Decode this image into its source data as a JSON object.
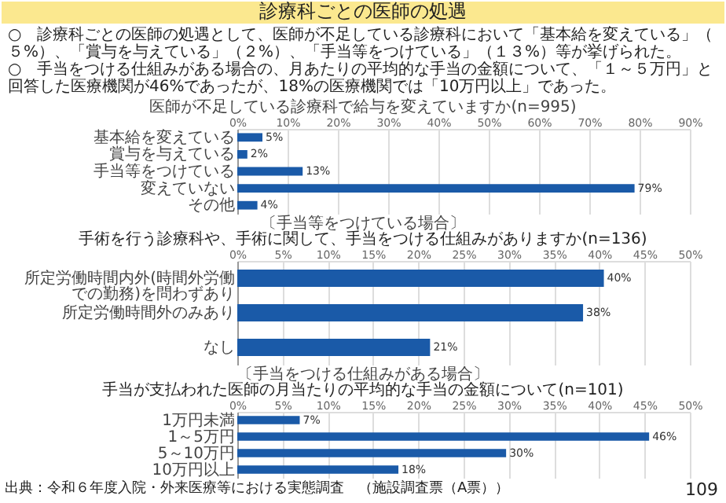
{
  "chart_data": [
    {
      "type": "bar",
      "orientation": "horizontal",
      "title": "医師が不足している診療科で給与を変えていますか(n=995)",
      "annotations": [
        "診療科ごとの医師の処遇",
        "○　診療科ごとの医師の処遇として、医師が不足している診療科において「基本給を変えている」（５%）、「賞与を与えている」（２%）、「手当等をつけている」（１３%）等が挙げられた。",
        "○　手当をつける仕組みがある場合の、月あたりの平均的な手当の金額について、「１～５万円」と回答した医療機関が46%であったが、18%の医療機関では「10万円以上」であった。"
      ],
      "categories": [
        "基本給を変えている",
        "賞与を与えている",
        "手当等をつけている",
        "変えていない",
        "その他"
      ],
      "values": [
        5,
        2,
        13,
        79,
        4
      ],
      "value_labels": [
        "5%",
        "2%",
        "13%",
        "79%",
        "4%"
      ],
      "color": "#1a5aa8",
      "xlim": [
        0,
        90
      ],
      "xticks": [
        {
          "value": 0,
          "label": "0%"
        },
        {
          "value": 10,
          "label": "10%"
        },
        {
          "value": 20,
          "label": "20%"
        },
        {
          "value": 30,
          "label": "30%"
        },
        {
          "value": 40,
          "label": "40%"
        },
        {
          "value": 50,
          "label": "50%"
        },
        {
          "value": 60,
          "label": "60%"
        },
        {
          "value": 70,
          "label": "70%"
        },
        {
          "value": 80,
          "label": "80%"
        },
        {
          "value": 90,
          "label": "90%"
        }
      ],
      "grid": "x"
    },
    {
      "type": "bar",
      "orientation": "horizontal",
      "title": "〔手当等をつけている場合〕",
      "subtitle": "手術を行う診療科や、手術に関して、手当をつける仕組みがありますか(n=136)",
      "categories": [
        "所定労働時間内外(時間外労働での勤務)を問わずあり",
        "所定労働時間外のみあり",
        "なし"
      ],
      "values": [
        40.5,
        38.2,
        21.3
      ],
      "value_labels": [
        "40%",
        "38%",
        "21%"
      ],
      "color": "#1a5aa8",
      "xlim": [
        0,
        50
      ],
      "xticks": [
        {
          "value": 0,
          "label": "0%"
        },
        {
          "value": 5,
          "label": "5%"
        },
        {
          "value": 10,
          "label": "10%"
        },
        {
          "value": 15,
          "label": "15%"
        },
        {
          "value": 20,
          "label": "20%"
        },
        {
          "value": 25,
          "label": "25%"
        },
        {
          "value": 30,
          "label": "30%"
        },
        {
          "value": 35,
          "label": "35%"
        },
        {
          "value": 40,
          "label": "40%"
        },
        {
          "value": 45,
          "label": "45%"
        },
        {
          "value": 50,
          "label": "50%"
        }
      ],
      "grid": "x"
    },
    {
      "type": "bar",
      "orientation": "horizontal",
      "title": "〔手当をつける仕組みがある場合〕",
      "subtitle": "手当が支払われた医師の月当たりの平均的な手当の金額について(n=101)",
      "annotations": [
        "出典：令和６年度入院・外来医療等における実態調査　（施設調査票（A票））",
        "109"
      ],
      "categories": [
        "1万円未満",
        "1～5万円",
        "5～10万円",
        "10万円以上"
      ],
      "values": [
        6.9,
        45.5,
        29.7,
        17.8
      ],
      "value_labels": [
        "7%",
        "46%",
        "30%",
        "18%"
      ],
      "color": "#1a5aa8",
      "xlim": [
        0,
        50
      ],
      "xticks": [
        {
          "value": 0,
          "label": "0%"
        },
        {
          "value": 5,
          "label": "5%"
        },
        {
          "value": 10,
          "label": "10%"
        },
        {
          "value": 15,
          "label": "15%"
        },
        {
          "value": 20,
          "label": "20%"
        },
        {
          "value": 25,
          "label": "25%"
        },
        {
          "value": 30,
          "label": "30%"
        },
        {
          "value": 35,
          "label": "35%"
        },
        {
          "value": 40,
          "label": "40%"
        },
        {
          "value": 45,
          "label": "45%"
        },
        {
          "value": 50,
          "label": "50%"
        }
      ],
      "grid": "x"
    }
  ]
}
